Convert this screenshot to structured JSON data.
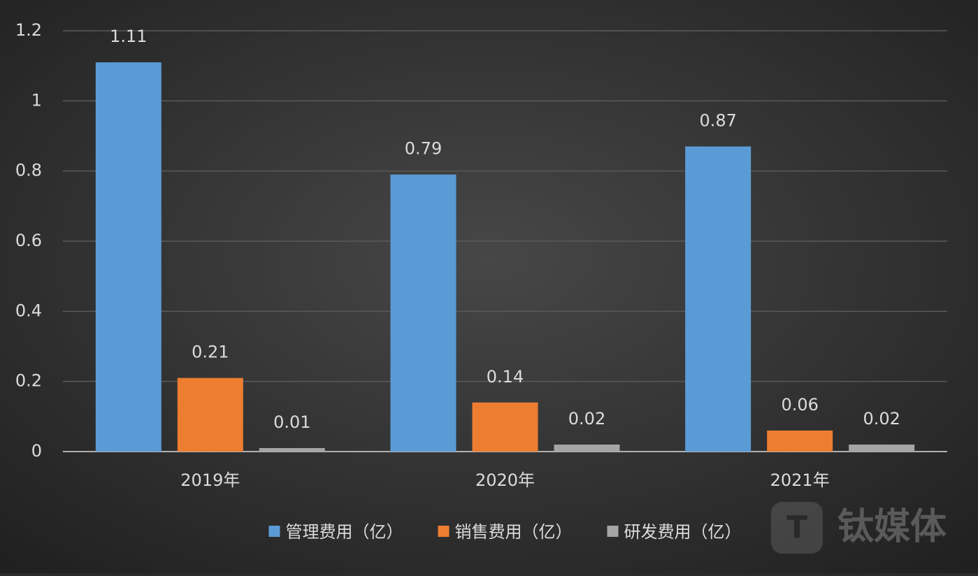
{
  "chart_data": {
    "type": "bar",
    "categories": [
      "2019年",
      "2020年",
      "2021年"
    ],
    "series": [
      {
        "name": "管理费用（亿）",
        "color": "#5b9bd5",
        "values": [
          1.11,
          0.79,
          0.87
        ]
      },
      {
        "name": "销售费用（亿）",
        "color": "#ed7d31",
        "values": [
          0.21,
          0.14,
          0.06
        ]
      },
      {
        "name": "研发费用（亿）",
        "color": "#a5a5a5",
        "values": [
          0.01,
          0.02,
          0.02
        ]
      }
    ],
    "ylim": [
      0,
      1.2
    ],
    "yticks": [
      0,
      0.2,
      0.4,
      0.6,
      0.8,
      1,
      1.2
    ],
    "grid": true,
    "legend": "bottom"
  },
  "watermark": "钛媒体"
}
